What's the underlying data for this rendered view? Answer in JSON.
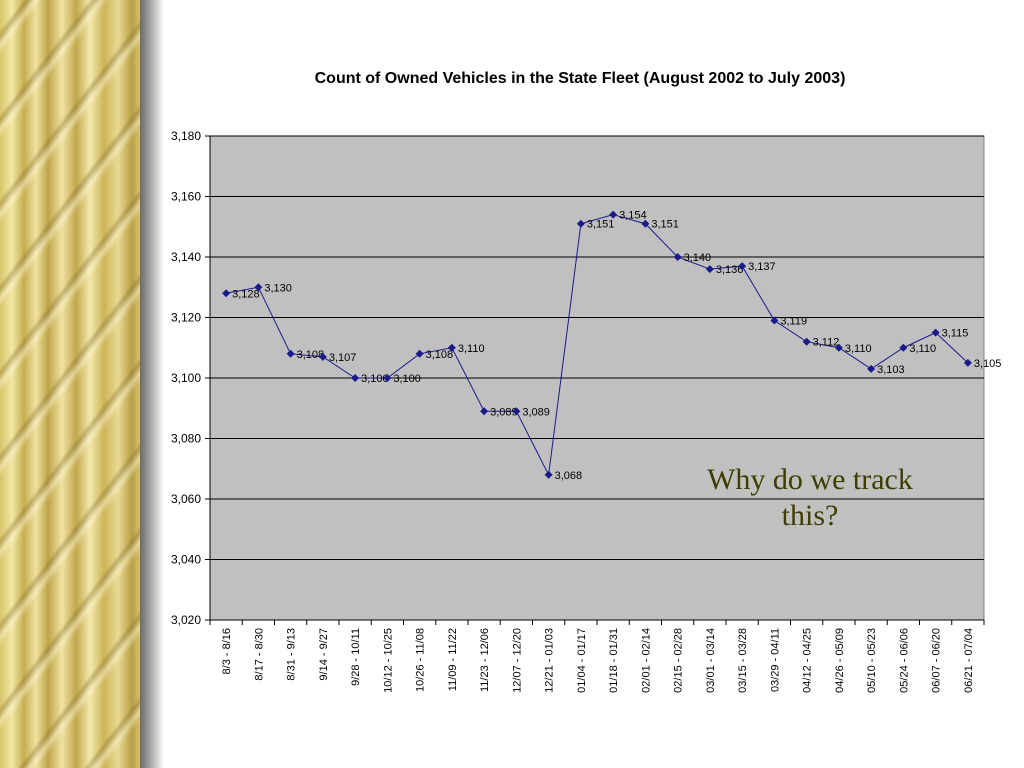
{
  "chart_data": {
    "type": "line",
    "title": "Count of Owned Vehicles in the State Fleet (August 2002 to July 2003)",
    "xlabel": "",
    "ylabel": "",
    "ylim": [
      3020,
      3180
    ],
    "yticks": [
      3020,
      3040,
      3060,
      3080,
      3100,
      3120,
      3140,
      3160,
      3180
    ],
    "grid": true,
    "legend": "none",
    "colors": {
      "line": "#1a1a8c",
      "plot_bg": "#c0c0c0",
      "grid": "#000000"
    },
    "categories": [
      "8/3 - 8/16",
      "8/17 - 8/30",
      "8/31 - 9/13",
      "9/14 - 9/27",
      "9/28 - 10/11",
      "10/12 - 10/25",
      "10/26 - 11/08",
      "11/09 - 11/22",
      "11/23 - 12/06",
      "12/07 - 12/20",
      "12/21 - 01/03",
      "01/04 - 01/17",
      "01/18 - 01/31",
      "02/01 - 02/14",
      "02/15 - 02/28",
      "03/01 - 03/14",
      "03/15 - 03/28",
      "03/29 - 04/11",
      "04/12 - 04/25",
      "04/26 - 05/09",
      "05/10 - 05/23",
      "05/24 - 06/06",
      "06/07 - 06/20",
      "06/21 - 07/04"
    ],
    "series": [
      {
        "values": [
          3128,
          3130,
          3108,
          3107,
          3100,
          3100,
          3108,
          3110,
          3089,
          3089,
          3068,
          3151,
          3154,
          3151,
          3140,
          3136,
          3137,
          3119,
          3112,
          3110,
          3103,
          3110,
          3115,
          3105
        ]
      }
    ],
    "annotations": [
      "Why do we track",
      "this?"
    ]
  }
}
